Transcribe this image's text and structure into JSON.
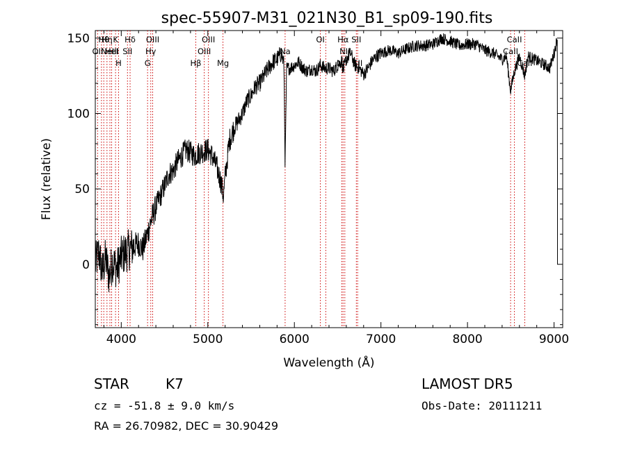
{
  "chart_data": {
    "type": "line",
    "title": "spec-55907-M31_021N30_B1_sp09-190.fits",
    "xlabel": "Wavelength (Å)",
    "ylabel": "Flux (relative)",
    "xlim": [
      3700,
      9100
    ],
    "ylim": [
      -42,
      155
    ],
    "xticks": [
      4000,
      5000,
      6000,
      7000,
      8000,
      9000
    ],
    "yticks": [
      0,
      50,
      100,
      150
    ],
    "grid": false,
    "line_color": "#000000",
    "marker_color": "#cc0000",
    "spectrum_anchors": {
      "x": [
        3700,
        3740,
        3780,
        3820,
        3860,
        3900,
        3950,
        4000,
        4050,
        4100,
        4150,
        4200,
        4250,
        4300,
        4350,
        4400,
        4450,
        4500,
        4550,
        4600,
        4650,
        4700,
        4750,
        4800,
        4850,
        4900,
        4950,
        5000,
        5050,
        5100,
        5150,
        5180,
        5200,
        5250,
        5300,
        5350,
        5400,
        5450,
        5500,
        5550,
        5600,
        5650,
        5700,
        5750,
        5800,
        5850,
        5880,
        5893,
        5910,
        5950,
        6000,
        6050,
        6100,
        6150,
        6200,
        6250,
        6300,
        6350,
        6400,
        6450,
        6500,
        6550,
        6563,
        6600,
        6650,
        6700,
        6750,
        6800,
        6850,
        6900,
        6950,
        7000,
        7100,
        7200,
        7300,
        7400,
        7500,
        7600,
        7700,
        7800,
        7900,
        8000,
        8100,
        8200,
        8300,
        8400,
        8450,
        8498,
        8542,
        8600,
        8662,
        8700,
        8800,
        8900,
        8950,
        9000,
        9020,
        9040
      ],
      "y": [
        0,
        8,
        -5,
        4,
        -8,
        2,
        -3,
        5,
        8,
        10,
        12,
        14,
        10,
        20,
        30,
        38,
        45,
        52,
        60,
        62,
        68,
        72,
        76,
        74,
        72,
        74,
        75,
        76,
        72,
        65,
        55,
        45,
        58,
        82,
        90,
        95,
        100,
        108,
        112,
        118,
        120,
        125,
        130,
        134,
        136,
        140,
        132,
        65,
        130,
        130,
        132,
        134,
        130,
        128,
        130,
        128,
        132,
        130,
        130,
        128,
        132,
        135,
        128,
        136,
        140,
        132,
        130,
        126,
        130,
        135,
        138,
        140,
        142,
        140,
        143,
        145,
        145,
        146,
        150,
        148,
        145,
        146,
        146,
        142,
        140,
        136,
        138,
        115,
        128,
        138,
        125,
        138,
        135,
        132,
        130,
        140,
        145,
        150
      ]
    },
    "line_markers": [
      {
        "x": 3727,
        "tier": 2,
        "label": "OII"
      },
      {
        "x": 3771,
        "tier": 3,
        "label": ""
      },
      {
        "x": 3798,
        "tier": 1,
        "label": "Hθ"
      },
      {
        "x": 3835,
        "tier": 1,
        "label": "Hη"
      },
      {
        "x": 3869,
        "tier": 2,
        "label": "NeIII"
      },
      {
        "x": 3889,
        "tier": 2,
        "label": "HeI"
      },
      {
        "x": 3934,
        "tier": 1,
        "label": "K"
      },
      {
        "x": 3969,
        "tier": 3,
        "label": "H"
      },
      {
        "x": 4072,
        "tier": 2,
        "label": "SII"
      },
      {
        "x": 4102,
        "tier": 1,
        "label": "Hδ"
      },
      {
        "x": 4304,
        "tier": 3,
        "label": "G"
      },
      {
        "x": 4341,
        "tier": 2,
        "label": "Hγ"
      },
      {
        "x": 4363,
        "tier": 1,
        "label": "OIII"
      },
      {
        "x": 4861,
        "tier": 3,
        "label": "Hβ"
      },
      {
        "x": 4959,
        "tier": 2,
        "label": "OIII"
      },
      {
        "x": 5007,
        "tier": 1,
        "label": "OIII"
      },
      {
        "x": 5175,
        "tier": 3,
        "label": "Mg"
      },
      {
        "x": 5893,
        "tier": 2,
        "label": "Na"
      },
      {
        "x": 6300,
        "tier": 1,
        "label": "OI"
      },
      {
        "x": 6363,
        "tier": 2,
        "label": ""
      },
      {
        "x": 6548,
        "tier": 3,
        "label": "NII"
      },
      {
        "x": 6563,
        "tier": 1,
        "label": "Hα"
      },
      {
        "x": 6583,
        "tier": 2,
        "label": "NII"
      },
      {
        "x": 6716,
        "tier": 1,
        "label": "SII"
      },
      {
        "x": 6731,
        "tier": 3,
        "label": "SII"
      },
      {
        "x": 8498,
        "tier": 2,
        "label": "CaII"
      },
      {
        "x": 8542,
        "tier": 1,
        "label": "CaII"
      },
      {
        "x": 8662,
        "tier": 3,
        "label": "CaII"
      }
    ]
  },
  "info": {
    "star_label": "STAR",
    "spectral_type": "K7",
    "survey": "LAMOST DR5",
    "cz_text": "cz = -51.8 ± 9.0 km/s",
    "obs_date": "Obs-Date: 20111211",
    "radec": "RA =  26.70982, DEC =  30.90429"
  }
}
